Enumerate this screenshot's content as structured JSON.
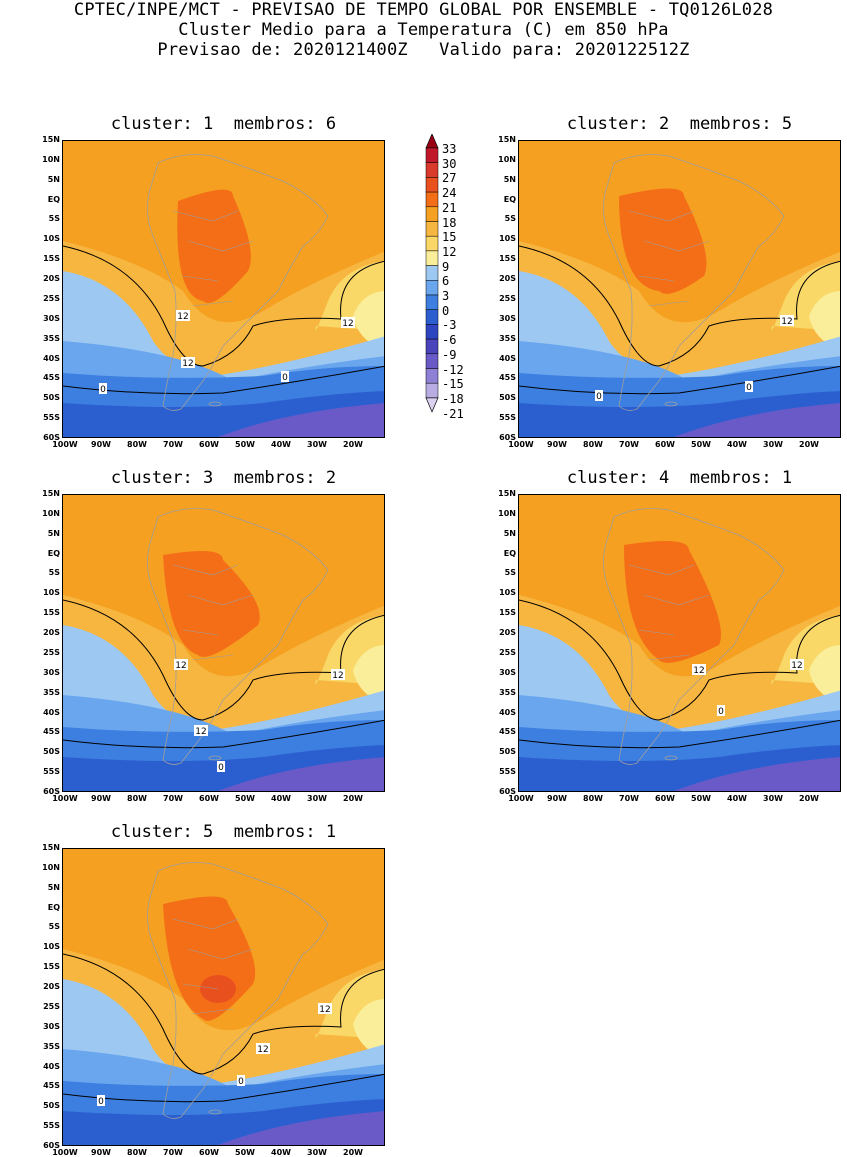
{
  "header": {
    "line1": "CPTEC/INPE/MCT - PREVISAO DE TEMPO GLOBAL POR ENSEMBLE - TQ0126L028",
    "line2": "Cluster Medio para a Temperatura (C) em 850 hPa",
    "line3": "Previsao de: 2020121400Z   Valido para: 2020122512Z"
  },
  "panels": [
    {
      "title": "cluster: 1  membros: 6"
    },
    {
      "title": "cluster: 2  membros: 5"
    },
    {
      "title": "cluster: 3  membros: 2"
    },
    {
      "title": "cluster: 4  membros: 1"
    },
    {
      "title": "cluster: 5  membros: 1"
    }
  ],
  "axes": {
    "lat_labels": [
      "15N",
      "10N",
      "5N",
      "EQ",
      "5S",
      "10S",
      "15S",
      "20S",
      "25S",
      "30S",
      "35S",
      "40S",
      "45S",
      "50S",
      "55S",
      "60S"
    ],
    "lon_labels": [
      "100W",
      "90W",
      "80W",
      "70W",
      "60W",
      "50W",
      "40W",
      "30W",
      "20W"
    ]
  },
  "colorbar": {
    "labels": [
      "33",
      "30",
      "27",
      "24",
      "21",
      "18",
      "15",
      "12",
      "9",
      "6",
      "3",
      "0",
      "-3",
      "-6",
      "-9",
      "-12",
      "-15",
      "-18",
      "-21"
    ],
    "colors": [
      "#9a0014",
      "#c0182a",
      "#d93a2c",
      "#e8501e",
      "#f46e18",
      "#f5a020",
      "#f7b640",
      "#f9d868",
      "#fbee9a",
      "#9dc8f2",
      "#6aa6ee",
      "#3d7fe0",
      "#2b5fd0",
      "#2d45c0",
      "#4a44bc",
      "#6a5ac8",
      "#8e80d4",
      "#b8ace2",
      "#dad2f0"
    ]
  },
  "contour_labels": {
    "twelve": "12",
    "zero": "0"
  }
}
